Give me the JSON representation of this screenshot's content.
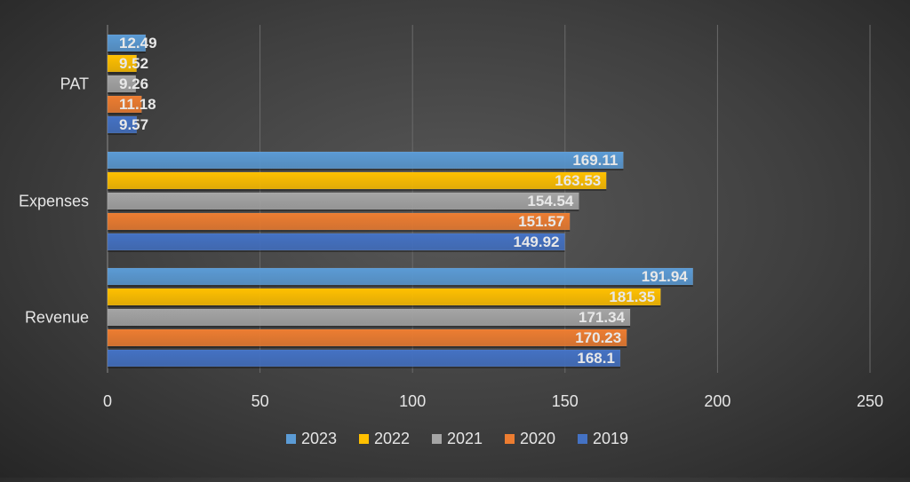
{
  "chart_data": {
    "type": "bar",
    "orientation": "horizontal",
    "categories": [
      "Revenue",
      "Expenses",
      "PAT"
    ],
    "series": [
      {
        "name": "2019",
        "color": "#4472C4",
        "values": [
          168.1,
          149.92,
          9.57
        ]
      },
      {
        "name": "2020",
        "color": "#ED7D31",
        "values": [
          170.23,
          151.57,
          11.18
        ]
      },
      {
        "name": "2021",
        "color": "#A5A5A5",
        "values": [
          171.34,
          154.54,
          9.26
        ]
      },
      {
        "name": "2022",
        "color": "#FFC000",
        "values": [
          181.35,
          163.53,
          9.52
        ]
      },
      {
        "name": "2023",
        "color": "#5B9BD5",
        "values": [
          191.94,
          169.11,
          12.49
        ]
      }
    ],
    "xlim": [
      0,
      250
    ],
    "xticks": [
      0,
      50,
      100,
      150,
      200,
      250
    ],
    "title": "",
    "xlabel": "",
    "ylabel": "",
    "grid": true,
    "legend_position": "bottom",
    "legend_order": [
      "2023",
      "2022",
      "2021",
      "2020",
      "2019"
    ]
  }
}
